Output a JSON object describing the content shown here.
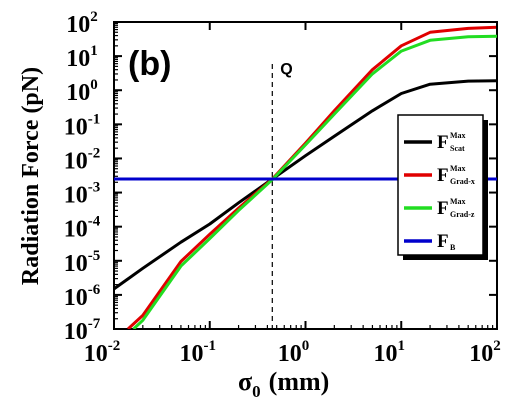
{
  "chart_data": {
    "type": "line",
    "panel_label": "(b)",
    "xlabel": {
      "symbol": "σ",
      "sub": "0",
      "unit": "(mm)"
    },
    "ylabel": "Radiation Force (pN)",
    "x_scale": "log",
    "y_scale": "log",
    "xlim": [
      0.01,
      100
    ],
    "ylim": [
      1e-07,
      100
    ],
    "x_ticks": [
      {
        "base": "10",
        "exp": "-2"
      },
      {
        "base": "10",
        "exp": "-1"
      },
      {
        "base": "10",
        "exp": "0"
      },
      {
        "base": "10",
        "exp": "1"
      },
      {
        "base": "10",
        "exp": "2"
      }
    ],
    "y_ticks": [
      {
        "base": "10",
        "exp": "-7"
      },
      {
        "base": "10",
        "exp": "-6"
      },
      {
        "base": "10",
        "exp": "-5"
      },
      {
        "base": "10",
        "exp": "-4"
      },
      {
        "base": "10",
        "exp": "-3"
      },
      {
        "base": "10",
        "exp": "-2"
      },
      {
        "base": "10",
        "exp": "-1"
      },
      {
        "base": "10",
        "exp": "0"
      },
      {
        "base": "10",
        "exp": "1"
      },
      {
        "base": "10",
        "exp": "2"
      }
    ],
    "vline": {
      "x": 0.45,
      "label": "Q",
      "style": "dashed"
    },
    "grid": false,
    "legend_position": "right",
    "series": [
      {
        "name": {
          "main": "F",
          "sup": "Max",
          "sub": "Scat"
        },
        "color": "#000000",
        "x": [
          0.01,
          0.02,
          0.05,
          0.1,
          0.2,
          0.45,
          1,
          2,
          5,
          10,
          20,
          50,
          100
        ],
        "y": [
          1.5e-06,
          6e-06,
          3.5e-05,
          0.00012,
          0.0005,
          0.0025,
          0.012,
          0.045,
          0.25,
          0.8,
          1.5,
          1.85,
          1.9
        ]
      },
      {
        "name": {
          "main": "F",
          "sup": "Max",
          "sub": "Grad-x"
        },
        "color": "#e00000",
        "x": [
          0.014,
          0.02,
          0.05,
          0.1,
          0.2,
          0.45,
          1,
          2,
          5,
          10,
          20,
          50,
          100
        ],
        "y": [
          1e-07,
          2.5e-07,
          9.5e-06,
          6e-05,
          0.00035,
          0.0025,
          0.028,
          0.25,
          4,
          20,
          50,
          65,
          70
        ]
      },
      {
        "name": {
          "main": "F",
          "sup": "Max",
          "sub": "Grad-z"
        },
        "color": "#22dd22",
        "x": [
          0.016,
          0.02,
          0.05,
          0.1,
          0.2,
          0.45,
          1,
          2,
          5,
          10,
          20,
          50,
          100
        ],
        "y": [
          1e-07,
          1.8e-07,
          7e-06,
          4.5e-05,
          0.0003,
          0.0024,
          0.025,
          0.2,
          3,
          14,
          29,
          37,
          38
        ]
      },
      {
        "name": {
          "main": "F",
          "sup": "",
          "sub": "B"
        },
        "color": "#0000cc",
        "x": [
          0.01,
          100
        ],
        "y": [
          0.0025,
          0.0025
        ]
      }
    ]
  }
}
